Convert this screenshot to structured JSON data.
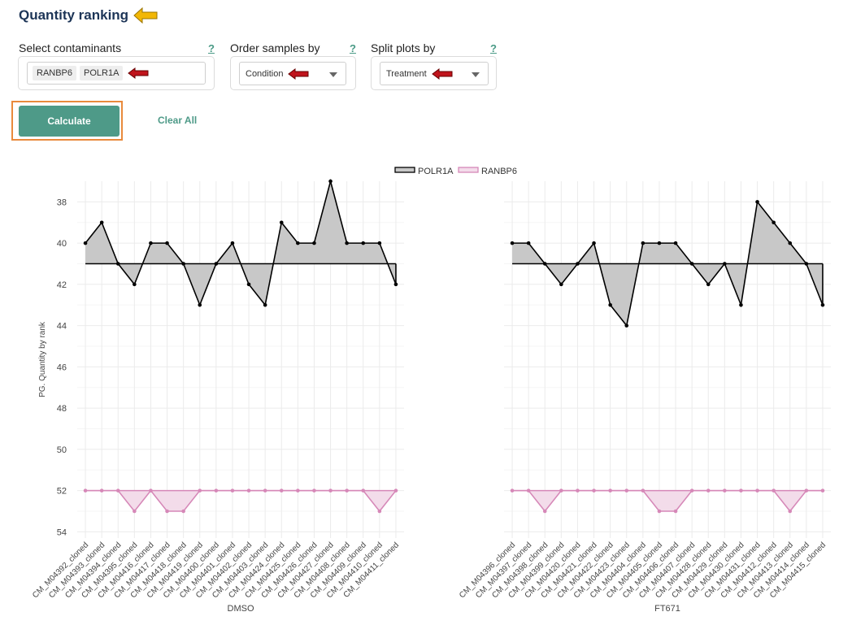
{
  "header": {
    "title": "Quantity ranking"
  },
  "controls": {
    "contaminants": {
      "label": "Select contaminants",
      "help": "?",
      "selected": [
        "RANBP6",
        "POLR1A"
      ]
    },
    "order": {
      "label": "Order samples by",
      "help": "?",
      "value": "Condition"
    },
    "split": {
      "label": "Split plots by",
      "help": "?",
      "value": "Treatment"
    },
    "calculate_label": "Calculate",
    "clear_label": "Clear All"
  },
  "colors": {
    "accent": "#4e9a88",
    "highlight": "#e98a3c",
    "polr1a_line": "#000000",
    "polr1a_fill": "#c8c8c8",
    "ranbp6_line": "#d688b8",
    "ranbp6_fill": "#f3dcea",
    "arrow_red": "#c0141c",
    "arrow_yellow": "#f2b705"
  },
  "chart_data": {
    "type": "line",
    "ylabel": "PG. Quantity by rank",
    "ylim": [
      37,
      54.3
    ],
    "yticks": [
      38,
      40,
      42,
      44,
      46,
      48,
      50,
      52,
      54
    ],
    "y_reversed": true,
    "legend": [
      {
        "name": "POLR1A",
        "color": "#000000",
        "fill": "#c8c8c8"
      },
      {
        "name": "RANBP6",
        "color": "#d688b8",
        "fill": "#f3dcea"
      }
    ],
    "legend_position": "top-center",
    "baselines": {
      "POLR1A": 41,
      "RANBP6": 52
    },
    "panels": [
      {
        "xlabel": "DMSO",
        "categories": [
          "CM_M04392_cloned",
          "CM_M04393_cloned",
          "CM_M04394_cloned",
          "CM_M04395_cloned",
          "CM_M04416_cloned",
          "CM_M04417_cloned",
          "CM_M04418_cloned",
          "CM_M04419_cloned",
          "CM_M04400_cloned",
          "CM_M04401_cloned",
          "CM_M04402_cloned",
          "CM_M04403_cloned",
          "CM_M04424_cloned",
          "CM_M04425_cloned",
          "CM_M04426_cloned",
          "CM_M04427_cloned",
          "CM_M04408_cloned",
          "CM_M04409_cloned",
          "CM_M04410_cloned",
          "CM_M04411_cloned"
        ],
        "series": [
          {
            "name": "POLR1A",
            "values": [
              40,
              39,
              41,
              42,
              40,
              40,
              41,
              43,
              41,
              40,
              42,
              43,
              39,
              40,
              40,
              37,
              40,
              40,
              40,
              42
            ]
          },
          {
            "name": "RANBP6",
            "values": [
              52,
              52,
              52,
              53,
              52,
              53,
              53,
              52,
              52,
              52,
              52,
              52,
              52,
              52,
              52,
              52,
              52,
              52,
              53,
              52
            ]
          }
        ]
      },
      {
        "xlabel": "FT671",
        "categories": [
          "CM_M04396_cloned",
          "CM_M04397_cloned",
          "CM_M04398_cloned",
          "CM_M04399_cloned",
          "CM_M04420_cloned",
          "CM_M04421_cloned",
          "CM_M04422_cloned",
          "CM_M04423_cloned",
          "CM_M04404_cloned",
          "CM_M04405_cloned",
          "CM_M04406_cloned",
          "CM_M04407_cloned",
          "CM_M04428_cloned",
          "CM_M04429_cloned",
          "CM_M04430_cloned",
          "CM_M04431_cloned",
          "CM_M04412_cloned",
          "CM_M04413_cloned",
          "CM_M04414_cloned",
          "CM_M04415_cloned"
        ],
        "series": [
          {
            "name": "POLR1A",
            "values": [
              40,
              40,
              41,
              42,
              41,
              40,
              43,
              44,
              40,
              40,
              40,
              41,
              42,
              41,
              43,
              38,
              39,
              40,
              41,
              43
            ]
          },
          {
            "name": "RANBP6",
            "values": [
              52,
              52,
              53,
              52,
              52,
              52,
              52,
              52,
              52,
              53,
              53,
              52,
              52,
              52,
              52,
              52,
              52,
              53,
              52,
              52
            ]
          }
        ]
      }
    ]
  }
}
